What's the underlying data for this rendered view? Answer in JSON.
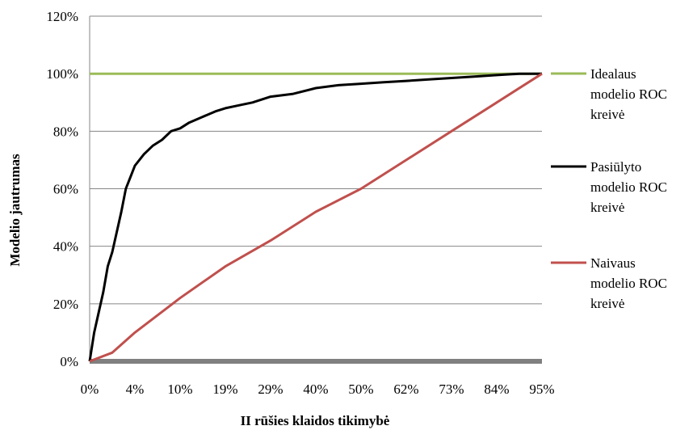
{
  "chart_data": {
    "type": "line",
    "title": "",
    "xlabel": "II rūšies klaidos tikimybė",
    "ylabel": "Modelio jautrumas",
    "x_ticks": [
      "0%",
      "4%",
      "10%",
      "19%",
      "29%",
      "40%",
      "50%",
      "62%",
      "73%",
      "84%",
      "95%"
    ],
    "y_ticks": [
      "0%",
      "20%",
      "40%",
      "60%",
      "80%",
      "100%",
      "120%"
    ],
    "xlim": [
      0,
      1
    ],
    "ylim": [
      0,
      1.2
    ],
    "grid": "horizontal",
    "legend_position": "right",
    "series": [
      {
        "name": "Idealaus modelio ROC kreivė",
        "name_lines": [
          "Idealaus",
          "modelio ROC",
          "kreivė"
        ],
        "color": "#9bbb59",
        "x": [
          0,
          1
        ],
        "y": [
          1.0,
          1.0
        ]
      },
      {
        "name": "Pasiūlyto modelio ROC kreivė",
        "name_lines": [
          "Pasiūlyto",
          "modelio ROC",
          "kreivė"
        ],
        "color": "#000000",
        "x": [
          0,
          0.01,
          0.02,
          0.03,
          0.04,
          0.05,
          0.06,
          0.07,
          0.08,
          0.09,
          0.1,
          0.12,
          0.14,
          0.16,
          0.18,
          0.2,
          0.22,
          0.25,
          0.28,
          0.3,
          0.33,
          0.36,
          0.4,
          0.45,
          0.5,
          0.55,
          0.6,
          0.65,
          0.7,
          0.75,
          0.8,
          0.85,
          0.9,
          0.95,
          1.0
        ],
        "y": [
          0,
          0.1,
          0.17,
          0.24,
          0.33,
          0.38,
          0.45,
          0.52,
          0.6,
          0.64,
          0.68,
          0.72,
          0.75,
          0.77,
          0.8,
          0.81,
          0.83,
          0.85,
          0.87,
          0.88,
          0.89,
          0.9,
          0.92,
          0.93,
          0.95,
          0.96,
          0.965,
          0.97,
          0.975,
          0.98,
          0.985,
          0.99,
          0.995,
          1.0,
          1.0
        ]
      },
      {
        "name": "Naivaus modelio ROC kreivė",
        "name_lines": [
          "Naivaus",
          "modelio ROC",
          "kreivė"
        ],
        "color": "#c0504d",
        "x": [
          0,
          0.05,
          0.1,
          0.15,
          0.2,
          0.3,
          0.4,
          0.5,
          0.6,
          0.7,
          0.8,
          0.9,
          1.0
        ],
        "y": [
          0,
          0.03,
          0.1,
          0.16,
          0.22,
          0.33,
          0.42,
          0.52,
          0.6,
          0.7,
          0.8,
          0.9,
          1.0
        ]
      }
    ],
    "baseline_color": "#808080"
  }
}
